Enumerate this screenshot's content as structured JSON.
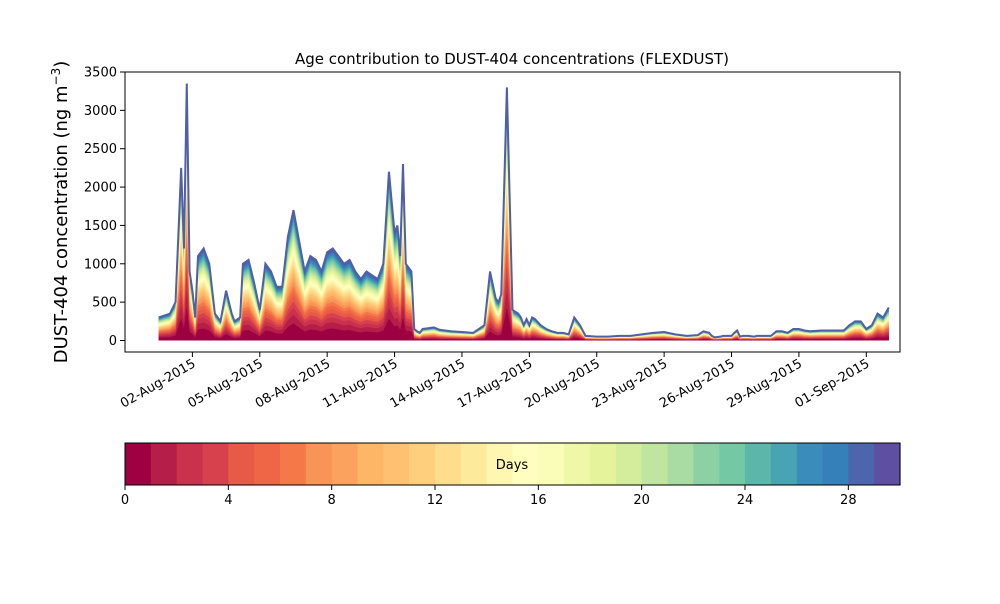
{
  "chart_data": {
    "type": "area",
    "title": "Age contribution to DUST-404 concentrations (FLEXDUST)",
    "ylabel_main": "DUST-404 concentration (ng m",
    "ylabel_sup": "−3",
    "ylabel_close": ")",
    "xlabel": "",
    "ylim": [
      -150,
      3500
    ],
    "xlim": [
      "2015-07-30T00:00",
      "2015-09-02T12:00"
    ],
    "yticks": [
      0,
      500,
      1000,
      1500,
      2000,
      2500,
      3000,
      3500
    ],
    "xticks": [
      "02-Aug-2015",
      "05-Aug-2015",
      "08-Aug-2015",
      "11-Aug-2015",
      "14-Aug-2015",
      "17-Aug-2015",
      "20-Aug-2015",
      "23-Aug-2015",
      "26-Aug-2015",
      "29-Aug-2015",
      "01-Sep-2015"
    ],
    "xtick_dates": [
      "2015-08-02",
      "2015-08-05",
      "2015-08-08",
      "2015-08-11",
      "2015-08-14",
      "2015-08-17",
      "2015-08-20",
      "2015-08-23",
      "2015-08-26",
      "2015-08-29",
      "2015-09-01"
    ],
    "total": {
      "x": [
        "2015-07-31T12:00",
        "2015-08-01T00:00",
        "2015-08-01T06:00",
        "2015-08-01T12:00",
        "2015-08-01T15:00",
        "2015-08-01T18:00",
        "2015-08-01T21:00",
        "2015-08-02T00:00",
        "2015-08-02T03:00",
        "2015-08-02T06:00",
        "2015-08-02T12:00",
        "2015-08-02T18:00",
        "2015-08-03T00:00",
        "2015-08-03T06:00",
        "2015-08-03T12:00",
        "2015-08-03T18:00",
        "2015-08-03T21:00",
        "2015-08-04T03:00",
        "2015-08-04T06:00",
        "2015-08-04T12:00",
        "2015-08-04T18:00",
        "2015-08-05T00:00",
        "2015-08-05T06:00",
        "2015-08-05T12:00",
        "2015-08-05T18:00",
        "2015-08-06T00:00",
        "2015-08-06T06:00",
        "2015-08-06T12:00",
        "2015-08-06T18:00",
        "2015-08-07T00:00",
        "2015-08-07T06:00",
        "2015-08-07T12:00",
        "2015-08-07T18:00",
        "2015-08-08T00:00",
        "2015-08-08T06:00",
        "2015-08-08T12:00",
        "2015-08-08T18:00",
        "2015-08-09T00:00",
        "2015-08-09T06:00",
        "2015-08-09T12:00",
        "2015-08-09T18:00",
        "2015-08-10T00:00",
        "2015-08-10T06:00",
        "2015-08-10T12:00",
        "2015-08-10T18:00",
        "2015-08-11T00:00",
        "2015-08-11T03:00",
        "2015-08-11T06:00",
        "2015-08-11T09:00",
        "2015-08-11T12:00",
        "2015-08-11T15:00",
        "2015-08-11T18:00",
        "2015-08-11T21:00",
        "2015-08-12T00:00",
        "2015-08-12T03:00",
        "2015-08-12T06:00",
        "2015-08-12T12:00",
        "2015-08-12T18:00",
        "2015-08-13T00:00",
        "2015-08-13T12:00",
        "2015-08-14T00:00",
        "2015-08-14T12:00",
        "2015-08-15T00:00",
        "2015-08-15T06:00",
        "2015-08-15T12:00",
        "2015-08-15T15:00",
        "2015-08-15T18:00",
        "2015-08-16T00:00",
        "2015-08-16T06:00",
        "2015-08-16T12:00",
        "2015-08-16T15:00",
        "2015-08-16T18:00",
        "2015-08-16T21:00",
        "2015-08-17T00:00",
        "2015-08-17T03:00",
        "2015-08-17T06:00",
        "2015-08-17T12:00",
        "2015-08-17T18:00",
        "2015-08-18T00:00",
        "2015-08-18T06:00",
        "2015-08-18T12:00",
        "2015-08-18T18:00",
        "2015-08-19T00:00",
        "2015-08-19T06:00",
        "2015-08-19T12:00",
        "2015-08-20T00:00",
        "2015-08-20T12:00",
        "2015-08-21T00:00",
        "2015-08-21T12:00",
        "2015-08-22T00:00",
        "2015-08-22T12:00",
        "2015-08-23T00:00",
        "2015-08-23T12:00",
        "2015-08-24T00:00",
        "2015-08-24T12:00",
        "2015-08-24T18:00",
        "2015-08-25T00:00",
        "2015-08-25T03:00",
        "2015-08-25T06:00",
        "2015-08-25T12:00",
        "2015-08-25T15:00",
        "2015-08-25T18:00",
        "2015-08-26T00:00",
        "2015-08-26T03:00",
        "2015-08-26T06:00",
        "2015-08-26T09:00",
        "2015-08-26T12:00",
        "2015-08-26T18:00",
        "2015-08-27T00:00",
        "2015-08-27T03:00",
        "2015-08-27T06:00",
        "2015-08-27T12:00",
        "2015-08-27T18:00",
        "2015-08-28T00:00",
        "2015-08-28T06:00",
        "2015-08-28T12:00",
        "2015-08-28T18:00",
        "2015-08-29T00:00",
        "2015-08-29T06:00",
        "2015-08-29T12:00",
        "2015-08-30T00:00",
        "2015-08-30T12:00",
        "2015-08-31T00:00",
        "2015-08-31T06:00",
        "2015-08-31T12:00",
        "2015-08-31T18:00",
        "2015-09-01T00:00",
        "2015-09-01T06:00",
        "2015-09-01T12:00",
        "2015-09-01T18:00",
        "2015-09-02T00:00"
      ],
      "y": [
        300,
        350,
        500,
        2250,
        1200,
        3350,
        900,
        650,
        300,
        1100,
        1200,
        1000,
        350,
        250,
        650,
        350,
        250,
        300,
        1000,
        1050,
        750,
        400,
        1000,
        900,
        700,
        700,
        1350,
        1700,
        1300,
        900,
        1100,
        1050,
        900,
        1150,
        1200,
        1100,
        1000,
        1050,
        900,
        800,
        900,
        850,
        800,
        1000,
        2200,
        1400,
        1500,
        1100,
        2300,
        1000,
        950,
        900,
        150,
        120,
        100,
        150,
        160,
        170,
        140,
        120,
        110,
        100,
        200,
        900,
        550,
        500,
        600,
        3300,
        400,
        350,
        300,
        200,
        280,
        200,
        300,
        280,
        200,
        150,
        120,
        100,
        100,
        80,
        300,
        200,
        60,
        50,
        50,
        60,
        60,
        80,
        100,
        110,
        80,
        60,
        70,
        120,
        100,
        60,
        40,
        50,
        60,
        60,
        60,
        100,
        130,
        50,
        60,
        60,
        50,
        60,
        60,
        60,
        60,
        120,
        120,
        100,
        150,
        150,
        130,
        120,
        130,
        130,
        130,
        200,
        250,
        250,
        150,
        200,
        350,
        300,
        430
      ]
    },
    "colorbar": {
      "label": "Days",
      "ticks": [
        0,
        4,
        8,
        12,
        16,
        20,
        24,
        28
      ],
      "range": [
        0,
        30
      ],
      "bins": 30,
      "colors": [
        "#9e0142",
        "#b41e48",
        "#c9314c",
        "#d7414e",
        "#e65a47",
        "#ef6646",
        "#f57848",
        "#f89456",
        "#fba35e",
        "#fdb566",
        "#fdc171",
        "#fed07e",
        "#fedd8d",
        "#feea9b",
        "#fef6b1",
        "#fffebe",
        "#f9fdb7",
        "#eff8a6",
        "#e5f49b",
        "#d3ed9c",
        "#c0e5a0",
        "#a9dca2",
        "#8dd0a4",
        "#75c8a4",
        "#5cb6a9",
        "#48a3b2",
        "#3a8cbb",
        "#3680b9",
        "#4d65ad",
        "#5e4fa2"
      ]
    }
  }
}
